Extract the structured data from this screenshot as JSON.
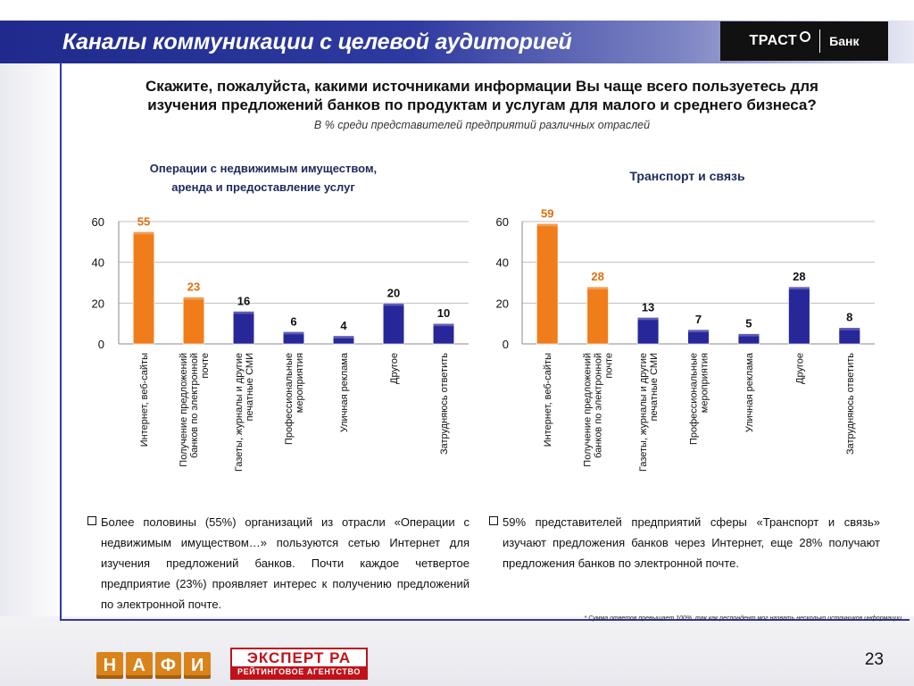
{
  "header": {
    "title": "Каналы коммуникации с целевой аудиторией",
    "logo_name": "ТРАСТ",
    "logo_bank": "Банк"
  },
  "question": {
    "line1": "Скажите, пожалуйста, какими источниками информации Вы чаще всего пользуетесь для",
    "line2": "изучения предложений банков по продуктам и услугам для малого и среднего бизнеса?",
    "subtitle": "В % среди представителей предприятий различных отраслей"
  },
  "colors": {
    "orange": "#f07d1a",
    "navy": "#27279a",
    "value_orange": "#e46c0a",
    "value_black": "#111111",
    "grid": "#bfbfbf"
  },
  "chart_data": [
    {
      "type": "bar",
      "title_lines": [
        "Операции с недвижимым имуществом,",
        "аренда и предоставление услуг"
      ],
      "categories": [
        [
          "Интернет, веб-сайты"
        ],
        [
          "Получение предложений",
          "банков по электронной",
          "почте"
        ],
        [
          "Газеты, журналы и другие",
          "печатные СМИ"
        ],
        [
          "Профессиональные",
          "мероприятия"
        ],
        [
          "Уличная реклама"
        ],
        [
          "Другое"
        ],
        [
          "Затрудняюсь ответить"
        ]
      ],
      "values": [
        55,
        23,
        16,
        6,
        4,
        20,
        10
      ],
      "bar_colors": [
        "orange",
        "orange",
        "navy",
        "navy",
        "navy",
        "navy",
        "navy"
      ],
      "label_colors": [
        "value_orange",
        "value_orange",
        "value_black",
        "value_black",
        "value_black",
        "value_black",
        "value_black"
      ],
      "y_ticks": [
        0,
        20,
        40,
        60
      ],
      "ylim": [
        0,
        60
      ],
      "grid": true
    },
    {
      "type": "bar",
      "title_lines": [
        "Транспорт и связь"
      ],
      "categories": [
        [
          "Интернет, веб-сайты"
        ],
        [
          "Получение предложений",
          "банков по электронной",
          "почте"
        ],
        [
          "Газеты, журналы и другие",
          "печатные СМИ"
        ],
        [
          "Профессиональные",
          "мероприятия"
        ],
        [
          "Уличная реклама"
        ],
        [
          "Другое"
        ],
        [
          "Затрудняюсь ответить"
        ]
      ],
      "values": [
        59,
        28,
        13,
        7,
        5,
        28,
        8
      ],
      "bar_colors": [
        "orange",
        "orange",
        "navy",
        "navy",
        "navy",
        "navy",
        "navy"
      ],
      "label_colors": [
        "value_orange",
        "value_orange",
        "value_black",
        "value_black",
        "value_black",
        "value_black",
        "value_black"
      ],
      "y_ticks": [
        0,
        20,
        40,
        60
      ],
      "ylim": [
        0,
        60
      ],
      "grid": true
    }
  ],
  "bullets": {
    "left": "Более половины (55%) организаций из отрасли «Операции с недвижимым имуществом…» пользуются сетью Интернет для изучения предложений банков. Почти каждое четвертое предприятие (23%) проявляет интерес к получению предложений по электронной почте.",
    "right": "59% представителей предприятий сферы «Транспорт и связь» изучают предложения банков через Интернет, еще 28% получают предложения банков по электронной почте."
  },
  "footnote": "* Сумма ответов превышает 100%, так как респондент мог назвать несколько источников информации",
  "footer": {
    "nafi_letters": [
      "Н",
      "А",
      "Ф",
      "И"
    ],
    "expert_top": "ЭКСПЕРТ РА",
    "expert_bottom": "РЕЙТИНГОВОЕ АГЕНТСТВО",
    "page_number": "23"
  }
}
